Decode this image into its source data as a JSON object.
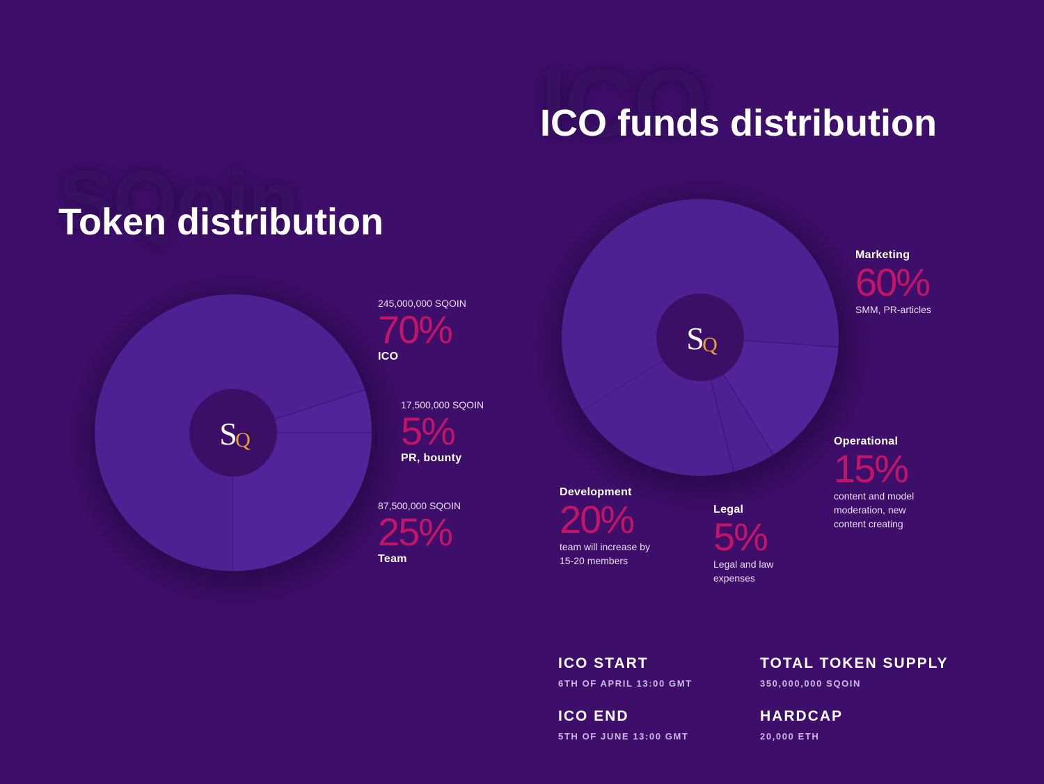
{
  "colors": {
    "background": "#3e0e6b",
    "slice": "#4d2192",
    "slice_light": "#522499",
    "hub": "#3c0f66",
    "accent_pink": "#c21568",
    "logo_gold": "#e9a13a"
  },
  "watermarks": {
    "left": "SQoin",
    "right": "ICO"
  },
  "logo": {
    "letter_s": "S",
    "letter_q": "Q"
  },
  "chart_data": [
    {
      "type": "pie",
      "title": "Token distribution",
      "categories": [
        "ICO",
        "PR, bounty",
        "Team"
      ],
      "values": [
        70,
        5,
        25
      ],
      "amounts": [
        "245,000,000 SQOIN",
        "17,500,000 SQOIN",
        "87,500,000 SQOIN"
      ],
      "labels": [
        "70%",
        "5%",
        "25%"
      ]
    },
    {
      "type": "pie",
      "title": "ICO funds distribution",
      "categories": [
        "Marketing",
        "Operational",
        "Legal",
        "Development"
      ],
      "values": [
        60,
        15,
        5,
        20
      ],
      "labels": [
        "60%",
        "15%",
        "5%",
        "20%"
      ],
      "descriptions": [
        "SMM, PR-articles",
        "content and model moderation, new content creating",
        "Legal and law expenses",
        "team will increase by 15-20 members"
      ]
    }
  ],
  "token_labels": [
    {
      "amount": "245,000,000 SQOIN",
      "percent": "70%",
      "name": "ICO"
    },
    {
      "amount": "17,500,000 SQOIN",
      "percent": "5%",
      "name": "PR, bounty"
    },
    {
      "amount": "87,500,000 SQOIN",
      "percent": "25%",
      "name": "Team"
    }
  ],
  "funds_labels": {
    "marketing": {
      "name": "Marketing",
      "percent": "60%",
      "desc_lines": [
        "SMM, PR-articles"
      ]
    },
    "operational": {
      "name": "Operational",
      "percent": "15%",
      "desc_lines": [
        "content and model",
        "moderation, new",
        "content creating"
      ]
    },
    "development": {
      "name": "Development",
      "percent": "20%",
      "desc_lines": [
        "team will increase by",
        "15-20 members"
      ]
    },
    "legal": {
      "name": "Legal",
      "percent": "5%",
      "desc_lines": [
        "Legal and law",
        "expenses"
      ]
    }
  },
  "info": {
    "ico_start": {
      "heading": "ICO START",
      "value": "6TH OF APRIL 13:00 GMT"
    },
    "total_supply": {
      "heading": "TOTAL TOKEN SUPPLY",
      "value": "350,000,000 SQOIN"
    },
    "ico_end": {
      "heading": "ICO END",
      "value": "5TH OF JUNE 13:00 GMT"
    },
    "hardcap": {
      "heading": "HARDCAP",
      "value": "20,000 ETH"
    }
  }
}
